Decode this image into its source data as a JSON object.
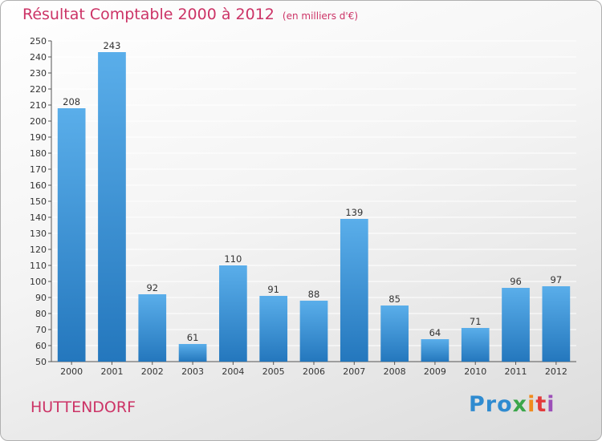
{
  "header": {
    "title": "Résultat Comptable 2000 à 2012",
    "unit": "(en milliers d'€)"
  },
  "footer": {
    "commune": "HUTTENDORF",
    "logo_letters": [
      "Pro",
      "x",
      "i",
      "t",
      "i"
    ]
  },
  "colors": {
    "title": "#cc3366",
    "bar_light": "#5aaeea",
    "bar_dark": "#2477bd",
    "grid": "#ffffff"
  },
  "chart_data": {
    "type": "bar",
    "categories": [
      "2000",
      "2001",
      "2002",
      "2003",
      "2004",
      "2005",
      "2006",
      "2007",
      "2008",
      "2009",
      "2010",
      "2011",
      "2012"
    ],
    "values": [
      208,
      243,
      92,
      61,
      110,
      91,
      88,
      139,
      85,
      64,
      71,
      96,
      97
    ],
    "title": "Résultat Comptable 2000 à 2012",
    "ylabel": "",
    "xlabel": "",
    "ylim": [
      50,
      250
    ],
    "ytick_step": 10,
    "grid": true,
    "legend": "none"
  }
}
